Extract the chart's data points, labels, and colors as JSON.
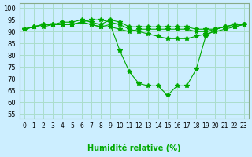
{
  "title": "Humidité relative (%)",
  "xlabel": "Humidité relative (%)",
  "ylabel": "",
  "xlim": [
    -0.5,
    23.5
  ],
  "ylim": [
    53,
    102
  ],
  "yticks": [
    55,
    60,
    65,
    70,
    75,
    80,
    85,
    90,
    95,
    100
  ],
  "xtick_labels": [
    "0",
    "1",
    "2",
    "3",
    "4",
    "5",
    "6",
    "7",
    "8",
    "9",
    "10",
    "11",
    "12",
    "13",
    "14",
    "15",
    "16",
    "17",
    "18",
    "19",
    "20",
    "21",
    "22",
    "23"
  ],
  "bg_color": "#cceeff",
  "grid_color": "#aaddcc",
  "line_color": "#00aa00",
  "marker": "*",
  "marker_size": 4,
  "series": [
    [
      91,
      92,
      93,
      93,
      94,
      94,
      95,
      94,
      93,
      95,
      94,
      92,
      92,
      92,
      92,
      92,
      92,
      92,
      91,
      91,
      91,
      92,
      93,
      93
    ],
    [
      91,
      92,
      93,
      93,
      93,
      93,
      94,
      95,
      95,
      94,
      93,
      91,
      90,
      89,
      88,
      87,
      87,
      87,
      88,
      89,
      90,
      91,
      92,
      93
    ],
    [
      91,
      92,
      92,
      93,
      93,
      93,
      94,
      93,
      92,
      93,
      82,
      73,
      68,
      67,
      67,
      63,
      67,
      67,
      74,
      88,
      91,
      92,
      93,
      93
    ],
    [
      91,
      92,
      93,
      93,
      93,
      93,
      94,
      93,
      92,
      92,
      91,
      90,
      91,
      91,
      91,
      91,
      91,
      91,
      90,
      90,
      91,
      92,
      92,
      93
    ]
  ]
}
